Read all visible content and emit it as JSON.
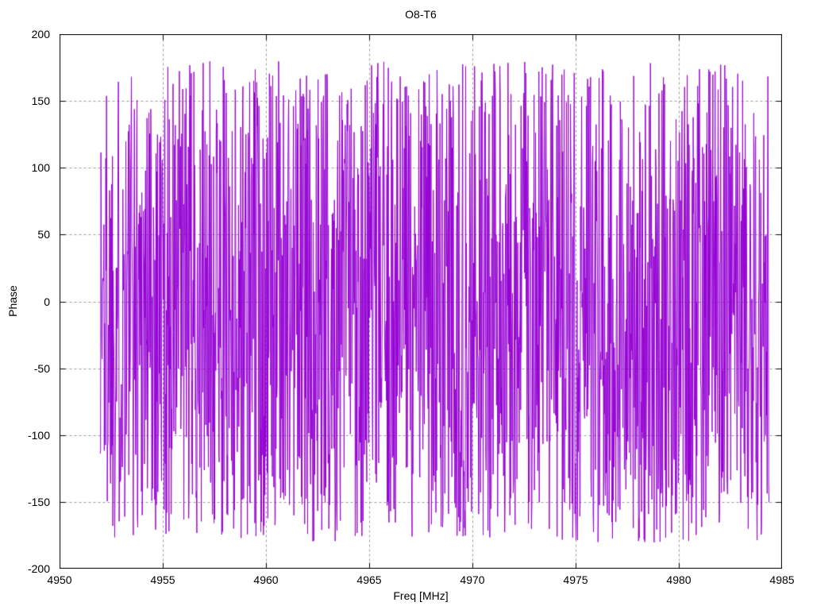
{
  "window": {
    "background": "#ffffff",
    "text_color": "#000000"
  },
  "chart_data": {
    "type": "line",
    "title": "O8-T6",
    "xlabel": "Freq [MHz]",
    "ylabel": "Phase",
    "xlim": [
      4950,
      4985
    ],
    "ylim": [
      -200,
      200
    ],
    "x_ticks": [
      4950,
      4955,
      4960,
      4965,
      4970,
      4975,
      4980,
      4985
    ],
    "y_ticks": [
      -200,
      -150,
      -100,
      -50,
      0,
      50,
      100,
      150,
      200
    ],
    "grid": {
      "show": true,
      "color": "#9a9a9a",
      "dash": [
        3,
        3
      ]
    },
    "border_color": "#000000",
    "tick_length": 7,
    "legend": "none",
    "series": [
      {
        "name": "Phase",
        "color": "#9400d3",
        "style": "line",
        "x_start": 4951.95,
        "x_end": 4984.35,
        "n_points": 1800,
        "distribution": "uniform",
        "y_min": -180,
        "y_max": 180,
        "seed": 1337,
        "description": "Dense pseudo-random phase noise; values uniformly fill approximately -180 to +180 degrees across the whole band, appearing as a solid violet block with occasional white vertical gaps"
      }
    ]
  }
}
